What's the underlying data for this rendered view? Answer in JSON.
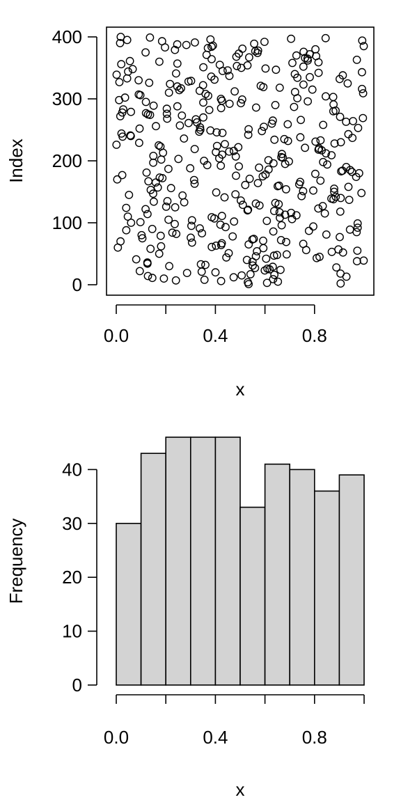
{
  "chart_data": [
    {
      "type": "scatter",
      "xlabel": "x",
      "ylabel": "Index",
      "xlim": [
        0,
        1
      ],
      "ylim": [
        0,
        400
      ],
      "x_ticks": [
        "0.0",
        "0.4",
        "0.8"
      ],
      "x_tick_values": [
        0,
        0.4,
        0.8
      ],
      "y_ticks": [
        "0",
        "100",
        "200",
        "300",
        "400"
      ],
      "y_tick_values": [
        0,
        100,
        200,
        300,
        400
      ],
      "marker": "open circle",
      "n_points": 400,
      "x_distribution": "uniform(0,1)",
      "index_start": 1,
      "grid": false
    },
    {
      "type": "bar",
      "xlabel": "x",
      "ylabel": "Frequency",
      "bin_edges": [
        0,
        0.1,
        0.2,
        0.3,
        0.4,
        0.5,
        0.6,
        0.7,
        0.8,
        0.9,
        1.0
      ],
      "values": [
        30,
        43,
        46,
        46,
        46,
        33,
        41,
        40,
        36,
        39
      ],
      "bar_color": "#d3d3d3",
      "x_ticks": [
        "0.0",
        "0.4",
        "0.8"
      ],
      "x_tick_values": [
        0,
        0.4,
        0.8
      ],
      "y_ticks": [
        "0",
        "10",
        "20",
        "30",
        "40"
      ],
      "y_tick_values": [
        0,
        10,
        20,
        30,
        40
      ],
      "ylim": [
        0,
        46
      ],
      "grid": false
    }
  ]
}
